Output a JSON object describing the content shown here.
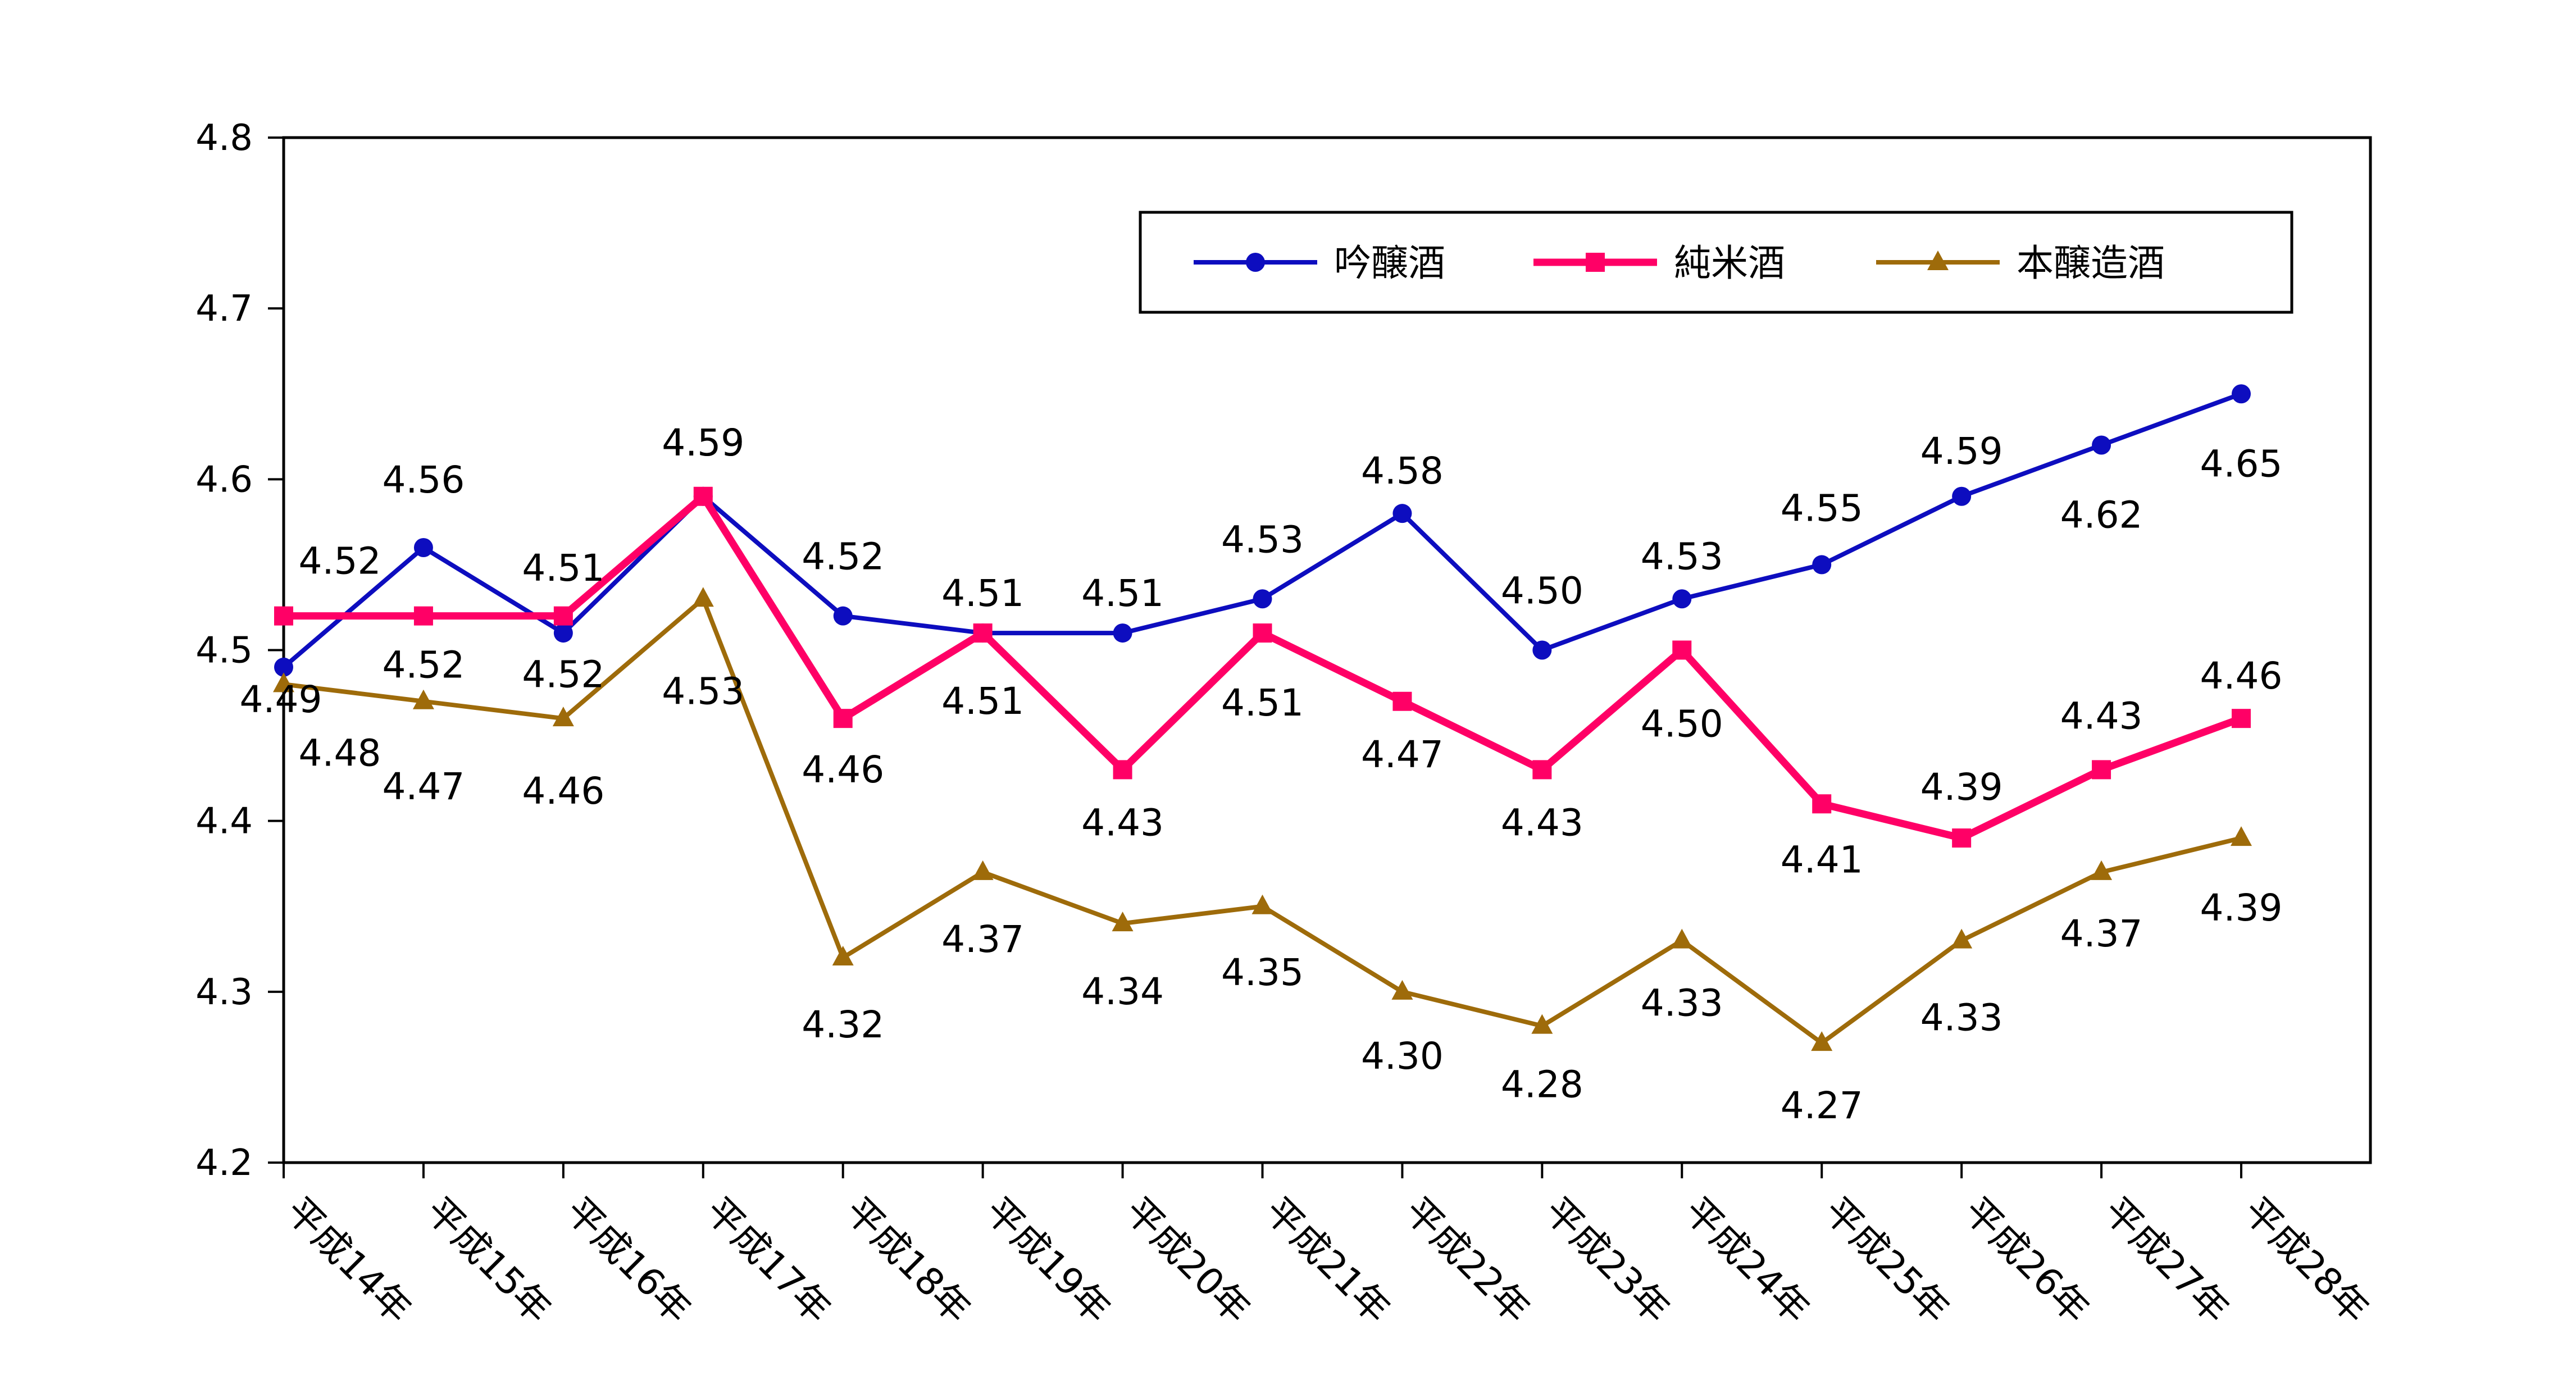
{
  "chart_data": {
    "type": "line",
    "title": "",
    "xlabel": "",
    "ylabel": "",
    "ylim": [
      4.2,
      4.8
    ],
    "yticks": [
      "4.2",
      "4.3",
      "4.4",
      "4.5",
      "4.6",
      "4.7",
      "4.8"
    ],
    "grid": false,
    "legend_position": "top-right",
    "categories": [
      "平成14年",
      "平成15年",
      "平成16年",
      "平成17年",
      "平成18年",
      "平成19年",
      "平成20年",
      "平成21年",
      "平成22年",
      "平成23年",
      "平成24年",
      "平成25年",
      "平成26年",
      "平成27年",
      "平成28年"
    ],
    "series": [
      {
        "name": "吟醸酒",
        "color": "#0d0dbf",
        "marker": "circle",
        "values": [
          4.49,
          4.56,
          4.51,
          4.59,
          4.52,
          4.51,
          4.51,
          4.53,
          4.58,
          4.5,
          4.53,
          4.55,
          4.59,
          4.62,
          4.65
        ],
        "labels": [
          "4.49",
          "4.56",
          "4.51",
          "4.59",
          "4.52",
          "4.51",
          "4.51",
          "4.53",
          "4.58",
          "4.50",
          "4.53",
          "4.55",
          "4.59",
          "4.62",
          "4.65"
        ]
      },
      {
        "name": "純米酒",
        "color": "#ff0066",
        "marker": "square",
        "values": [
          4.52,
          4.52,
          4.52,
          4.59,
          4.46,
          4.51,
          4.43,
          4.51,
          4.47,
          4.43,
          4.5,
          4.41,
          4.39,
          4.43,
          4.46
        ],
        "labels": [
          "4.52",
          "4.52",
          "4.52",
          "4.59",
          "4.46",
          "4.51",
          "4.43",
          "4.51",
          "4.47",
          "4.43",
          "4.50",
          "4.41",
          "4.39",
          "4.43",
          "4.46"
        ]
      },
      {
        "name": "本醸造酒",
        "color": "#9e6b0a",
        "marker": "triangle",
        "values": [
          4.48,
          4.47,
          4.46,
          4.53,
          4.32,
          4.37,
          4.34,
          4.35,
          4.3,
          4.28,
          4.33,
          4.27,
          4.33,
          4.37,
          4.39
        ],
        "labels": [
          "4.48",
          "4.47",
          "4.46",
          "4.53",
          "4.32",
          "4.37",
          "4.34",
          "4.35",
          "4.30",
          "4.28",
          "4.33",
          "4.27",
          "4.33",
          "4.37",
          "4.39"
        ]
      }
    ]
  }
}
